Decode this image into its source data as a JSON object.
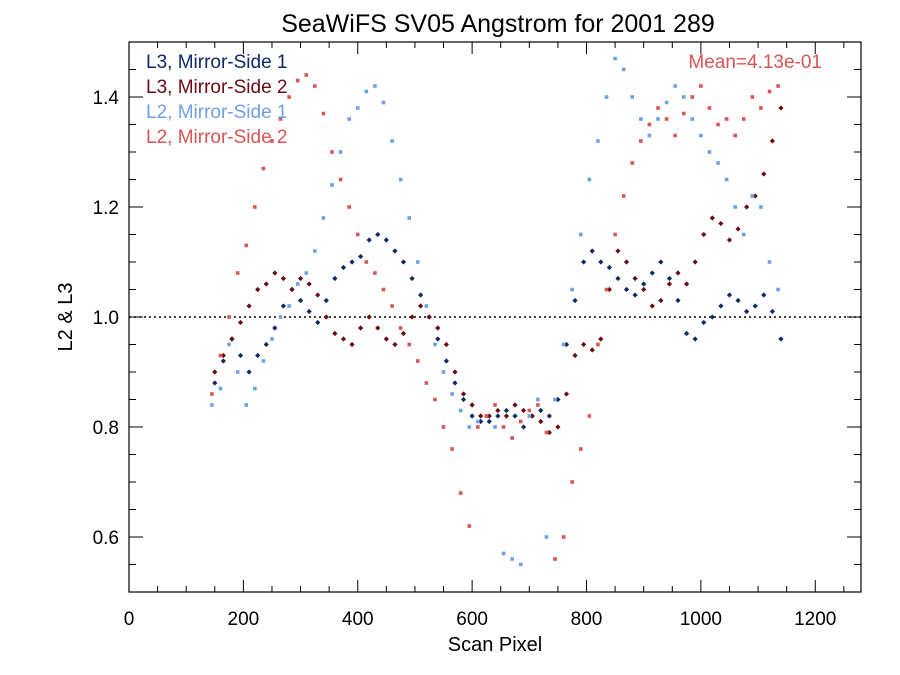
{
  "chart_data": {
    "type": "scatter",
    "title": "SeaWiFS SV05 Angstrom for 2001 289",
    "xlabel": "Scan Pixel",
    "ylabel": "L2 & L3",
    "xlim": [
      0,
      1280
    ],
    "ylim": [
      0.5,
      1.5
    ],
    "x_ticks": [
      0,
      200,
      400,
      600,
      800,
      1000,
      1200
    ],
    "y_ticks": [
      0.6,
      0.8,
      1.0,
      1.2,
      1.4
    ],
    "x_tick_labels": [
      "0",
      "200",
      "400",
      "600",
      "800",
      "1000",
      "1200"
    ],
    "y_tick_labels": [
      "0.6",
      "0.8",
      "1.0",
      "1.2",
      "1.4"
    ],
    "reference_line": {
      "y": 1.0,
      "style": "dotted"
    },
    "annotation": "Mean=4.13e-01",
    "legend_placement": "top-left",
    "series": [
      {
        "name": "L3, Mirror-Side 1",
        "color": "#0b2a66",
        "marker": "diamond",
        "x": [
          150,
          165,
          180,
          195,
          210,
          225,
          240,
          255,
          270,
          285,
          300,
          315,
          330,
          345,
          360,
          375,
          390,
          405,
          420,
          435,
          450,
          465,
          480,
          495,
          510,
          525,
          540,
          555,
          570,
          585,
          600,
          615,
          630,
          645,
          660,
          675,
          690,
          705,
          720,
          735,
          750,
          765,
          780,
          795,
          810,
          825,
          840,
          855,
          870,
          885,
          900,
          915,
          930,
          945,
          960,
          975,
          990,
          1005,
          1020,
          1035,
          1050,
          1065,
          1080,
          1095,
          1110,
          1125,
          1140
        ],
        "y": [
          0.88,
          0.92,
          0.96,
          0.93,
          0.9,
          0.93,
          0.95,
          0.98,
          1.02,
          1.05,
          1.03,
          1.01,
          0.99,
          1.03,
          1.07,
          1.09,
          1.1,
          1.11,
          1.14,
          1.15,
          1.14,
          1.12,
          1.1,
          1.07,
          1.04,
          1.0,
          0.96,
          0.92,
          0.88,
          0.85,
          0.82,
          0.81,
          0.81,
          0.82,
          0.83,
          0.82,
          0.8,
          0.82,
          0.83,
          0.82,
          0.85,
          0.95,
          1.03,
          1.1,
          1.12,
          1.1,
          1.09,
          1.07,
          1.05,
          1.04,
          1.06,
          1.08,
          1.1,
          1.07,
          1.03,
          0.97,
          0.96,
          0.99,
          1.0,
          1.02,
          1.04,
          1.03,
          1.01,
          1.02,
          1.04,
          1.01,
          0.96
        ]
      },
      {
        "name": "L3, Mirror-Side 2",
        "color": "#6b0b12",
        "marker": "diamond",
        "x": [
          150,
          165,
          180,
          195,
          210,
          225,
          240,
          255,
          270,
          285,
          300,
          315,
          330,
          345,
          360,
          375,
          390,
          405,
          420,
          435,
          450,
          465,
          480,
          495,
          510,
          525,
          540,
          555,
          570,
          585,
          600,
          615,
          630,
          645,
          660,
          675,
          690,
          705,
          720,
          735,
          750,
          765,
          780,
          795,
          810,
          825,
          840,
          855,
          870,
          885,
          900,
          915,
          930,
          945,
          960,
          975,
          990,
          1005,
          1020,
          1035,
          1050,
          1065,
          1080,
          1095,
          1110,
          1125,
          1140
        ],
        "y": [
          0.9,
          0.93,
          0.96,
          0.99,
          1.02,
          1.05,
          1.06,
          1.08,
          1.07,
          1.05,
          1.07,
          1.06,
          1.04,
          1.0,
          0.97,
          0.96,
          0.95,
          0.98,
          1.0,
          0.98,
          0.96,
          0.95,
          0.97,
          1.0,
          1.02,
          1.0,
          0.98,
          0.95,
          0.9,
          0.86,
          0.84,
          0.82,
          0.82,
          0.83,
          0.82,
          0.84,
          0.83,
          0.82,
          0.81,
          0.79,
          0.8,
          0.86,
          0.93,
          0.95,
          0.94,
          0.96,
          1.05,
          1.12,
          1.1,
          1.07,
          1.05,
          1.02,
          1.03,
          1.06,
          1.08,
          1.06,
          1.1,
          1.15,
          1.18,
          1.17,
          1.14,
          1.16,
          1.2,
          1.22,
          1.26,
          1.32,
          1.38
        ]
      },
      {
        "name": "L2, Mirror-Side 1",
        "color": "#6fa0e6",
        "marker": "square",
        "x": [
          145,
          160,
          175,
          190,
          205,
          220,
          235,
          250,
          265,
          280,
          295,
          310,
          325,
          340,
          355,
          370,
          385,
          400,
          415,
          430,
          445,
          460,
          475,
          490,
          505,
          520,
          535,
          550,
          565,
          580,
          595,
          610,
          625,
          640,
          655,
          670,
          685,
          700,
          715,
          730,
          745,
          760,
          775,
          790,
          805,
          820,
          835,
          850,
          865,
          880,
          895,
          910,
          925,
          940,
          955,
          970,
          985,
          1000,
          1015,
          1030,
          1045,
          1060,
          1075,
          1090,
          1105,
          1120,
          1135
        ],
        "y": [
          0.84,
          0.87,
          0.95,
          0.9,
          0.84,
          0.87,
          0.92,
          0.96,
          1.0,
          1.02,
          1.06,
          1.08,
          1.12,
          1.18,
          1.24,
          1.3,
          1.36,
          1.38,
          1.41,
          1.42,
          1.39,
          1.32,
          1.25,
          1.18,
          1.1,
          1.02,
          0.95,
          0.9,
          0.86,
          0.83,
          0.8,
          0.81,
          0.82,
          0.8,
          0.57,
          0.56,
          0.55,
          0.82,
          0.85,
          0.6,
          0.85,
          0.95,
          1.05,
          1.15,
          1.25,
          1.32,
          1.4,
          1.47,
          1.45,
          1.4,
          1.36,
          1.33,
          1.36,
          1.39,
          1.42,
          1.4,
          1.36,
          1.33,
          1.3,
          1.28,
          1.25,
          1.2,
          1.15,
          1.22,
          1.2,
          1.1,
          1.05
        ]
      },
      {
        "name": "L2, Mirror-Side 2",
        "color": "#d95454",
        "marker": "square",
        "x": [
          145,
          160,
          175,
          190,
          205,
          220,
          235,
          250,
          265,
          280,
          295,
          310,
          325,
          340,
          355,
          370,
          385,
          400,
          415,
          430,
          445,
          460,
          475,
          490,
          505,
          520,
          535,
          550,
          565,
          580,
          595,
          610,
          625,
          640,
          655,
          670,
          685,
          700,
          715,
          730,
          745,
          760,
          775,
          790,
          805,
          820,
          835,
          850,
          865,
          880,
          895,
          910,
          925,
          940,
          955,
          970,
          985,
          1000,
          1015,
          1030,
          1045,
          1060,
          1075,
          1090,
          1105,
          1120,
          1135
        ],
        "y": [
          0.86,
          0.93,
          1.0,
          1.08,
          1.13,
          1.2,
          1.27,
          1.32,
          1.36,
          1.4,
          1.43,
          1.44,
          1.42,
          1.37,
          1.3,
          1.25,
          1.2,
          1.15,
          1.1,
          1.08,
          1.05,
          1.02,
          0.98,
          0.95,
          0.92,
          0.88,
          0.85,
          0.8,
          0.76,
          0.68,
          0.62,
          0.8,
          0.82,
          0.84,
          0.8,
          0.78,
          0.81,
          0.83,
          0.84,
          0.79,
          0.56,
          0.6,
          0.7,
          0.76,
          0.82,
          0.95,
          1.05,
          1.15,
          1.22,
          1.28,
          1.32,
          1.35,
          1.38,
          1.36,
          1.33,
          1.37,
          1.4,
          1.42,
          1.38,
          1.35,
          1.36,
          1.33,
          1.36,
          1.4,
          1.38,
          1.41,
          1.42
        ]
      }
    ]
  }
}
